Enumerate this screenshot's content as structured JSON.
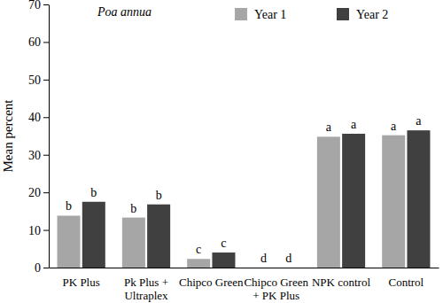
{
  "chart_data": {
    "type": "bar",
    "title": "Poa annua",
    "y_label": "Mean percent",
    "categories": [
      "PK Plus",
      "Pk Plus +\nUltraplex",
      "Chipco Green",
      "Chipco Green\n+ PK Plus",
      "NPK control",
      "Control"
    ],
    "series": [
      {
        "name": "Year 1",
        "color": "#a6a6a6",
        "values": [
          13.8,
          13.3,
          2.3,
          0,
          34.8,
          35.2
        ],
        "annotations": [
          "b",
          "b",
          "c",
          "d",
          "a",
          "a"
        ]
      },
      {
        "name": "Year 2",
        "color": "#404040",
        "values": [
          17.5,
          16.8,
          4.0,
          0,
          35.6,
          36.5
        ],
        "annotations": [
          "b",
          "b",
          "c",
          "d",
          "a",
          "a"
        ]
      }
    ],
    "ylim": [
      0,
      70
    ],
    "yticks": [
      0,
      10,
      20,
      30,
      40,
      50,
      60,
      70
    ],
    "grid": false,
    "legend": "top"
  }
}
